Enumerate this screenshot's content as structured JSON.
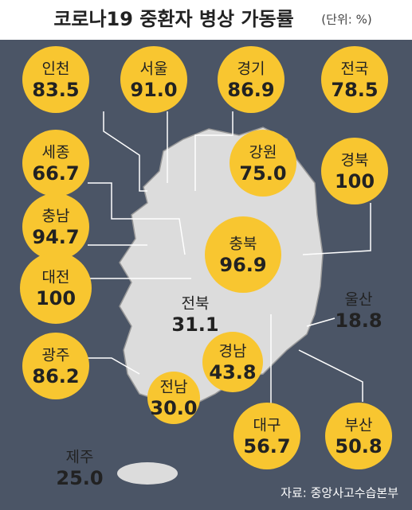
{
  "header": {
    "title": "코로나19 중환자 병상 가동률",
    "unit": "(단위: %)"
  },
  "regions": [
    {
      "name": "인천",
      "value": "83.5"
    },
    {
      "name": "서울",
      "value": "91.0"
    },
    {
      "name": "경기",
      "value": "86.9"
    },
    {
      "name": "전국",
      "value": "78.5"
    },
    {
      "name": "세종",
      "value": "66.7"
    },
    {
      "name": "강원",
      "value": "75.0"
    },
    {
      "name": "경북",
      "value": "100"
    },
    {
      "name": "충남",
      "value": "94.7"
    },
    {
      "name": "충북",
      "value": "96.9"
    },
    {
      "name": "대전",
      "value": "100"
    },
    {
      "name": "광주",
      "value": "86.2"
    },
    {
      "name": "경남",
      "value": "43.8"
    },
    {
      "name": "전남",
      "value": "30.0"
    },
    {
      "name": "대구",
      "value": "56.7"
    },
    {
      "name": "부산",
      "value": "50.8"
    }
  ],
  "map_labels": [
    {
      "name": "전북",
      "value": "31.1"
    },
    {
      "name": "울산",
      "value": "18.8"
    },
    {
      "name": "제주",
      "value": "25.0"
    }
  ],
  "source": "자료: 중앙사고수습본부"
}
